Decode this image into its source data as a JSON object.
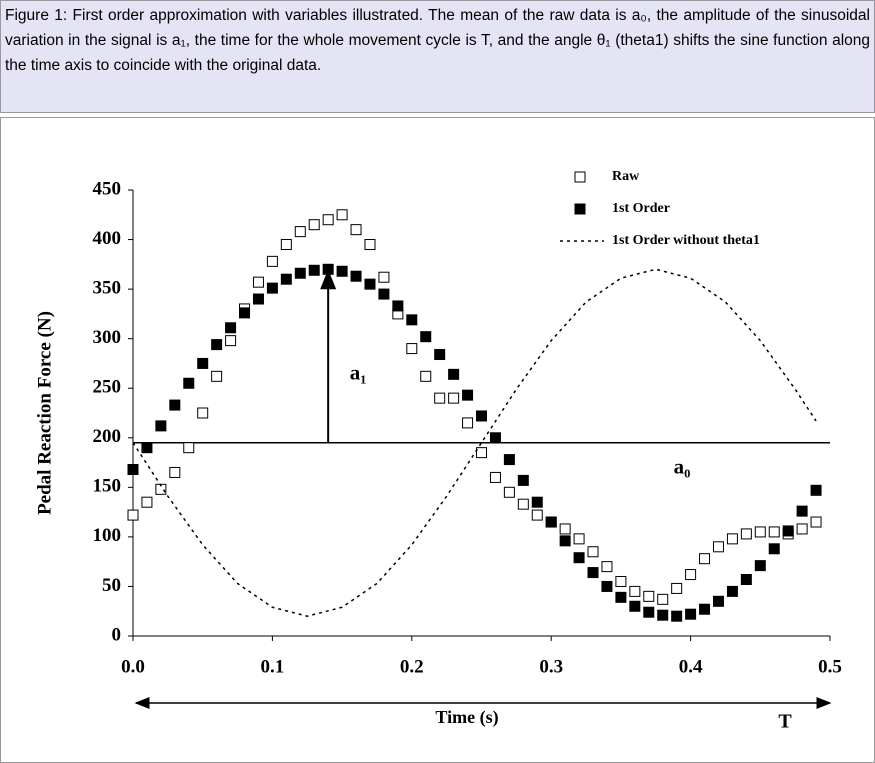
{
  "caption": "Figure 1: First order approximation with variables illustrated. The mean of the raw data is a₀, the amplitude of the sinusoidal variation in the signal is a₁, the time for the whole movement cycle is T, and the angle θ₁ (theta1) shifts the sine function along the time axis to coincide with the original data.",
  "chart_data": {
    "type": "scatter",
    "xlabel": "Time (s)",
    "ylabel": "Pedal Reaction Force (N)",
    "xlim": [
      0,
      0.5
    ],
    "ylim": [
      0,
      450
    ],
    "xticks": [
      {
        "value": 0,
        "label": "0.0"
      },
      0.1,
      0.2,
      0.3,
      0.4,
      0.5
    ],
    "yticks": [
      0,
      50,
      100,
      150,
      200,
      250,
      300,
      350,
      400,
      450
    ],
    "legend": "top-right",
    "reference_line": {
      "y": 195,
      "label": "a₀"
    },
    "arrow": {
      "x": 0.14,
      "y": [
        195,
        370
      ],
      "label": "a₁"
    },
    "period_label": "T",
    "series": [
      {
        "name": "Raw",
        "color": "#000000",
        "marker": "hollow-square",
        "x": [
          0,
          0.01,
          0.02,
          0.03,
          0.04,
          0.05,
          0.06,
          0.07,
          0.08,
          0.09,
          0.1,
          0.11,
          0.12,
          0.13,
          0.14,
          0.15,
          0.16,
          0.17,
          0.18,
          0.19,
          0.2,
          0.21,
          0.22,
          0.23,
          0.24,
          0.25,
          0.26,
          0.27,
          0.28,
          0.29,
          0.3,
          0.31,
          0.32,
          0.33,
          0.34,
          0.35,
          0.36,
          0.37,
          0.38,
          0.39,
          0.4,
          0.41,
          0.42,
          0.43,
          0.44,
          0.45,
          0.46,
          0.47,
          0.48,
          0.49
        ],
        "values": [
          122,
          135,
          148,
          165,
          190,
          225,
          262,
          298,
          330,
          357,
          378,
          395,
          408,
          415,
          420,
          425,
          410,
          395,
          362,
          325,
          290,
          262,
          240,
          240,
          215,
          185,
          160,
          145,
          133,
          122,
          115,
          108,
          98,
          85,
          70,
          55,
          45,
          40,
          37,
          48,
          62,
          78,
          90,
          98,
          103,
          105,
          105,
          103,
          108,
          115
        ]
      },
      {
        "name": "1st Order",
        "color": "#000000",
        "marker": "filled-square",
        "x": [
          0,
          0.01,
          0.02,
          0.03,
          0.04,
          0.05,
          0.06,
          0.07,
          0.08,
          0.09,
          0.1,
          0.11,
          0.12,
          0.13,
          0.14,
          0.15,
          0.16,
          0.17,
          0.18,
          0.19,
          0.2,
          0.21,
          0.22,
          0.23,
          0.24,
          0.25,
          0.26,
          0.27,
          0.28,
          0.29,
          0.3,
          0.31,
          0.32,
          0.33,
          0.34,
          0.35,
          0.36,
          0.37,
          0.38,
          0.39,
          0.4,
          0.41,
          0.42,
          0.43,
          0.44,
          0.45,
          0.46,
          0.47,
          0.48,
          0.49
        ],
        "values": [
          168,
          190,
          212,
          233,
          255,
          275,
          294,
          311,
          326,
          340,
          351,
          360,
          366,
          369,
          370,
          368,
          363,
          355,
          345,
          333,
          319,
          302,
          284,
          264,
          243,
          222,
          200,
          178,
          157,
          135,
          115,
          96,
          79,
          64,
          50,
          39,
          30,
          24,
          21,
          20,
          22,
          27,
          35,
          45,
          57,
          71,
          88,
          106,
          126,
          147
        ]
      },
      {
        "name": "1st Order without theta1",
        "color": "#000000",
        "marker": "dashed-line",
        "x": [
          0,
          0.025,
          0.05,
          0.075,
          0.1,
          0.125,
          0.15,
          0.175,
          0.2,
          0.225,
          0.25,
          0.275,
          0.3,
          0.325,
          0.35,
          0.375,
          0.4,
          0.425,
          0.45,
          0.475,
          0.49
        ],
        "values": [
          195,
          141,
          92,
          53,
          29,
          20,
          29,
          53,
          92,
          141,
          195,
          249,
          298,
          337,
          361,
          370,
          361,
          337,
          298,
          249,
          217
        ]
      }
    ]
  }
}
